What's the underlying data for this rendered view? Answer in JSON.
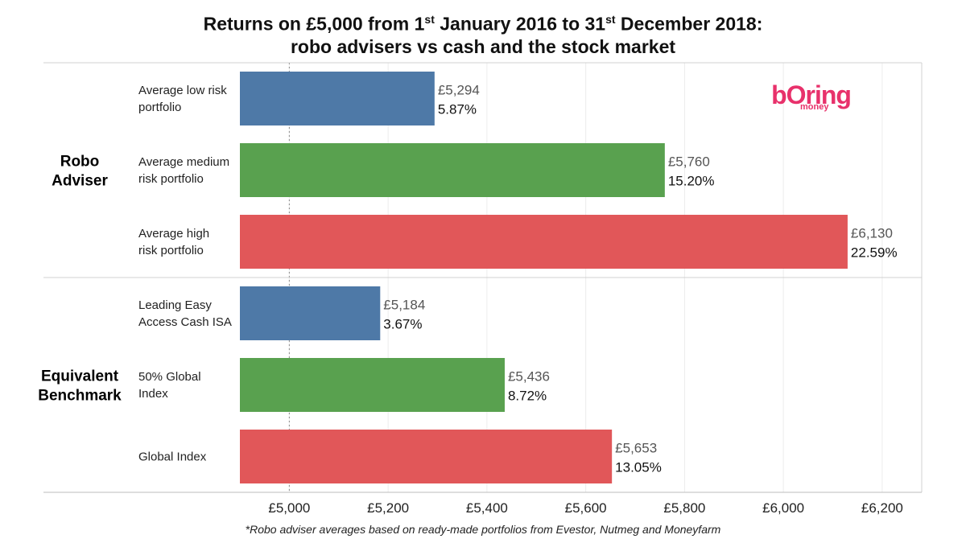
{
  "title": {
    "line1_a": "Returns on £5,000 from 1",
    "line1_sup1": "st",
    "line1_b": " January 2016 to 31",
    "line1_sup2": "st",
    "line1_c": " December 2018:",
    "line2": "robo advisers vs cash and the stock market"
  },
  "logo": {
    "word": "bOring",
    "sub": "money",
    "color": "#e8316b"
  },
  "footnote": "*Robo adviser averages based on ready-made portfolios from Evestor, Nutmeg and Moneyfarm",
  "chart_data": {
    "type": "bar",
    "orientation": "horizontal",
    "xlim": [
      4900,
      6280
    ],
    "reference_line": 5000,
    "x_ticks": [
      5000,
      5200,
      5400,
      5600,
      5800,
      6000,
      6200
    ],
    "x_tick_labels": [
      "£5,000",
      "£5,200",
      "£5,400",
      "£5,600",
      "£5,800",
      "£6,000",
      "£6,200"
    ],
    "groups": [
      {
        "label_lines": [
          "Robo",
          "Adviser"
        ],
        "bars": [
          {
            "label_lines": [
              "Average low risk",
              "portfolio"
            ],
            "value": 5294,
            "value_label": "£5,294",
            "pct_label": "5.87%",
            "color": "#4e79a7"
          },
          {
            "label_lines": [
              "Average medium",
              "risk portfolio"
            ],
            "value": 5760,
            "value_label": "£5,760",
            "pct_label": "15.20%",
            "color": "#59a14f"
          },
          {
            "label_lines": [
              "Average high",
              "risk portfolio"
            ],
            "value": 6130,
            "value_label": "£6,130",
            "pct_label": "22.59%",
            "color": "#e15759"
          }
        ]
      },
      {
        "label_lines": [
          "Equivalent",
          "Benchmark"
        ],
        "bars": [
          {
            "label_lines": [
              "Leading Easy",
              "Access Cash ISA"
            ],
            "value": 5184,
            "value_label": "£5,184",
            "pct_label": "3.67%",
            "color": "#4e79a7"
          },
          {
            "label_lines": [
              "50% Global",
              "Index"
            ],
            "value": 5436,
            "value_label": "£5,436",
            "pct_label": "8.72%",
            "color": "#59a14f"
          },
          {
            "label_lines": [
              "Global Index"
            ],
            "value": 5653,
            "value_label": "£5,653",
            "pct_label": "13.05%",
            "color": "#e15759"
          }
        ]
      }
    ]
  }
}
